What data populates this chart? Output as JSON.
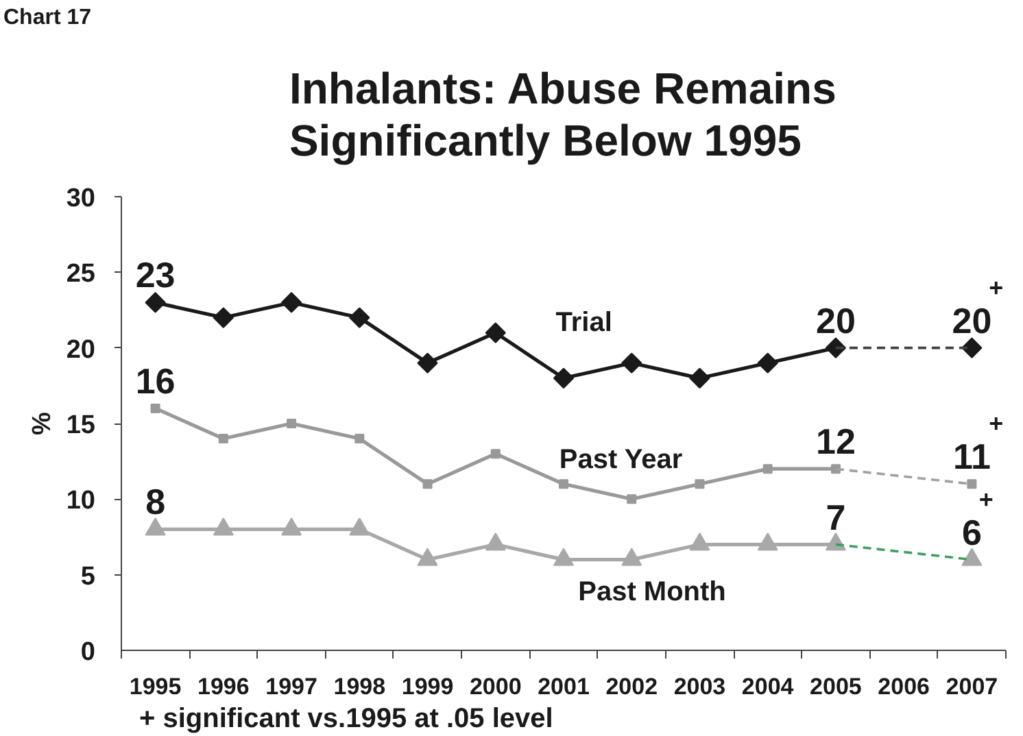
{
  "chart_data": {
    "type": "line",
    "title": "Inhalants: Abuse Remains Significantly Below 1995",
    "ylabel": "%",
    "annotations": [
      "Chart 17",
      "+ significant vs.1995 at .05 level"
    ],
    "x": [
      1995,
      1996,
      1997,
      1998,
      1999,
      2000,
      2001,
      2002,
      2003,
      2004,
      2005,
      2006,
      2007
    ],
    "xlim": [
      1994.5,
      2007.5
    ],
    "xticks": [
      1995,
      1996,
      1997,
      1998,
      1999,
      2000,
      2001,
      2002,
      2003,
      2004,
      2005,
      2006,
      2007
    ],
    "ylim": [
      0,
      30
    ],
    "yticks": [
      0,
      5,
      10,
      15,
      20,
      25,
      30
    ],
    "grid": false,
    "series": [
      {
        "name": "Trial",
        "color": "#1a1a1a",
        "marker": "diamond",
        "line_style": "solid",
        "values": [
          23,
          22,
          23,
          22,
          19,
          21,
          18,
          19,
          18,
          19,
          20,
          null,
          20
        ],
        "value_labels": [
          "23",
          null,
          null,
          null,
          null,
          null,
          null,
          null,
          null,
          null,
          "20",
          null,
          "20$^{+}$"
        ]
      },
      {
        "color": "#404040",
        "line_style": "dashed",
        "values": [
          null,
          null,
          null,
          null,
          null,
          null,
          null,
          null,
          null,
          null,
          20,
          null,
          20
        ]
      },
      {
        "name": "Past Year",
        "color": "#999999",
        "marker": "square",
        "line_style": "solid",
        "values": [
          16,
          14,
          15,
          14,
          11,
          13,
          11,
          10,
          11,
          12,
          12,
          null,
          11
        ],
        "value_labels": [
          "16",
          null,
          null,
          null,
          null,
          null,
          null,
          null,
          null,
          null,
          "12",
          null,
          "11$^{+}$"
        ]
      },
      {
        "color": "#a0a0a0",
        "line_style": "dashed",
        "values": [
          null,
          null,
          null,
          null,
          null,
          null,
          null,
          null,
          null,
          null,
          12,
          null,
          11
        ]
      },
      {
        "name": "Past Month",
        "color": "#a8a8a8",
        "marker": "triangle",
        "line_style": "solid",
        "values": [
          8,
          8,
          8,
          8,
          6,
          7,
          6,
          6,
          7,
          7,
          7,
          null,
          6
        ],
        "value_labels": [
          "8",
          null,
          null,
          null,
          null,
          null,
          null,
          null,
          null,
          null,
          "7",
          null,
          "6$^{+}$"
        ]
      },
      {
        "color": "#3aa060",
        "line_style": "dashed",
        "values": [
          null,
          null,
          null,
          null,
          null,
          null,
          null,
          null,
          null,
          null,
          7,
          null,
          6
        ]
      }
    ]
  }
}
